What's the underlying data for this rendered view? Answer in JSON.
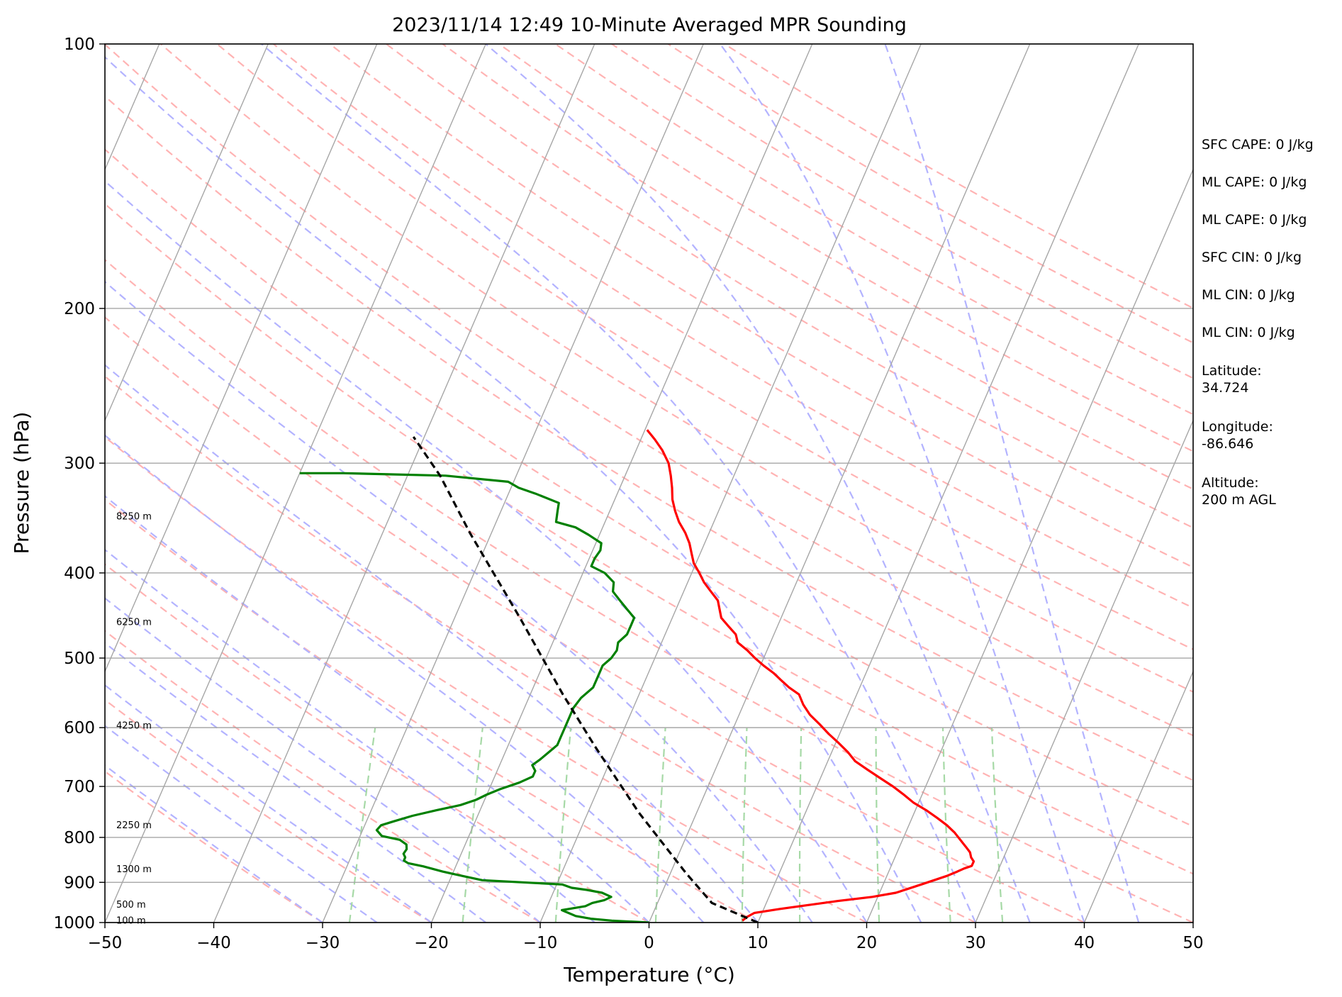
{
  "chart_data": {
    "type": "line",
    "chart_kind": "skew-T log-P sounding",
    "title": "2023/11/14 12:49 10-Minute Averaged MPR Sounding",
    "xlabel": "Temperature (°C)",
    "ylabel": "Pressure (hPa)",
    "xlim": [
      -50,
      50
    ],
    "ylim": [
      1000,
      100
    ],
    "y_scale": "log",
    "x_ticks": [
      -50,
      -40,
      -30,
      -20,
      -10,
      0,
      10,
      20,
      30,
      40,
      50
    ],
    "y_ticks": [
      100,
      200,
      300,
      400,
      500,
      600,
      700,
      800,
      900,
      1000
    ],
    "colors": {
      "temperature": "#ff0000",
      "dewpoint": "#008000",
      "parcel": "#000000",
      "isotherm": "#a6a6a6",
      "dry_adiabat": "#ffb3b3",
      "moist_adiabat": "#b3b3ff",
      "mixing_ratio": "#a6d9a6"
    },
    "height_labels": [
      {
        "label": "8250 m",
        "pressure": 345
      },
      {
        "label": "6250 m",
        "pressure": 455
      },
      {
        "label": "4250 m",
        "pressure": 597
      },
      {
        "label": "2250 m",
        "pressure": 775
      },
      {
        "label": "1300 m",
        "pressure": 870
      },
      {
        "label": "500 m",
        "pressure": 955
      },
      {
        "label": "100 m",
        "pressure": 995
      }
    ],
    "annotations": [
      "SFC CAPE: 0 J/kg",
      "ML CAPE: 0 J/kg",
      "ML CAPE: 0 J/kg",
      "SFC CIN: 0 J/kg",
      "ML CIN: 0 J/kg",
      "ML CIN: 0 J/kg",
      "Latitude:\n34.724",
      "Longitude:\n-86.646",
      "Altitude:\n200 m AGL"
    ],
    "series": [
      {
        "points": [
          [
            8.5,
            995
          ],
          [
            8.8,
            985
          ],
          [
            9.3,
            975
          ],
          [
            11.5,
            965
          ],
          [
            14,
            955
          ],
          [
            16.5,
            945
          ],
          [
            19.5,
            935
          ],
          [
            21.5,
            925
          ],
          [
            22.5,
            915
          ],
          [
            23.5,
            905
          ],
          [
            24.5,
            895
          ],
          [
            25.5,
            885
          ],
          [
            26.3,
            875
          ],
          [
            26.8,
            868
          ],
          [
            27.4,
            862
          ],
          [
            27.4,
            852
          ],
          [
            27,
            843
          ],
          [
            26.7,
            832
          ],
          [
            26.1,
            820
          ],
          [
            25.3,
            805
          ],
          [
            24.5,
            790
          ],
          [
            23.5,
            775
          ],
          [
            22.3,
            760
          ],
          [
            21,
            745
          ],
          [
            19.5,
            730
          ],
          [
            18.3,
            715
          ],
          [
            17,
            700
          ],
          [
            15.5,
            685
          ],
          [
            14,
            670
          ],
          [
            12.5,
            655
          ],
          [
            11.5,
            640
          ],
          [
            10.3,
            625
          ],
          [
            9,
            610
          ],
          [
            7.8,
            595
          ],
          [
            6.5,
            580
          ],
          [
            5.5,
            565
          ],
          [
            4.7,
            550
          ],
          [
            3.5,
            540
          ],
          [
            2.5,
            530
          ],
          [
            1.5,
            520
          ],
          [
            0.3,
            510
          ],
          [
            -0.8,
            500
          ],
          [
            -1.8,
            490
          ],
          [
            -3,
            480
          ],
          [
            -3.5,
            470
          ],
          [
            -4.5,
            460
          ],
          [
            -5.5,
            450
          ],
          [
            -6,
            440
          ],
          [
            -6.5,
            430
          ],
          [
            -7.5,
            420
          ],
          [
            -8.5,
            410
          ],
          [
            -9.3,
            400
          ],
          [
            -10.2,
            390
          ],
          [
            -10.8,
            380
          ],
          [
            -11.4,
            370
          ],
          [
            -12.2,
            360
          ],
          [
            -13.2,
            350
          ],
          [
            -14,
            340
          ],
          [
            -14.7,
            330
          ],
          [
            -15.2,
            320
          ],
          [
            -15.8,
            310
          ],
          [
            -16.5,
            300
          ],
          [
            -17.6,
            290
          ],
          [
            -18.7,
            282
          ],
          [
            -19.8,
            275
          ]
        ]
      },
      {
        "points": [
          [
            0,
            1000
          ],
          [
            -3.5,
            995
          ],
          [
            -5.5,
            990
          ],
          [
            -7,
            983
          ],
          [
            -7.8,
            975
          ],
          [
            -8.5,
            968
          ],
          [
            -7.5,
            963
          ],
          [
            -6.5,
            958
          ],
          [
            -6,
            950
          ],
          [
            -5,
            943
          ],
          [
            -4.5,
            935
          ],
          [
            -5.5,
            925
          ],
          [
            -7,
            918
          ],
          [
            -8.5,
            913
          ],
          [
            -9.5,
            905
          ],
          [
            -17,
            895
          ],
          [
            -19,
            885
          ],
          [
            -21,
            875
          ],
          [
            -23,
            863
          ],
          [
            -24.5,
            856
          ],
          [
            -25,
            850
          ],
          [
            -25,
            843
          ],
          [
            -25.3,
            835
          ],
          [
            -25.2,
            825
          ],
          [
            -25.4,
            815
          ],
          [
            -26.2,
            805
          ],
          [
            -28,
            797
          ],
          [
            -28.7,
            785
          ],
          [
            -28.5,
            775
          ],
          [
            -27.5,
            767
          ],
          [
            -26,
            756
          ],
          [
            -24,
            745
          ],
          [
            -22,
            735
          ],
          [
            -20.8,
            725
          ],
          [
            -20,
            715
          ],
          [
            -19,
            705
          ],
          [
            -17.5,
            693
          ],
          [
            -16.5,
            682
          ],
          [
            -16.5,
            672
          ],
          [
            -17,
            662
          ],
          [
            -16.5,
            652
          ],
          [
            -16,
            640
          ],
          [
            -15.5,
            628
          ],
          [
            -15.5,
            615
          ],
          [
            -15.5,
            600
          ],
          [
            -15.5,
            585
          ],
          [
            -15.5,
            570
          ],
          [
            -15.2,
            555
          ],
          [
            -14.5,
            540
          ],
          [
            -14.5,
            525
          ],
          [
            -14.5,
            510
          ],
          [
            -14,
            500
          ],
          [
            -13.8,
            490
          ],
          [
            -14,
            480
          ],
          [
            -13.5,
            470
          ],
          [
            -13.5,
            460
          ],
          [
            -13.5,
            450
          ],
          [
            -14.5,
            440
          ],
          [
            -15.5,
            430
          ],
          [
            -16.5,
            420
          ],
          [
            -16.8,
            410
          ],
          [
            -18,
            400
          ],
          [
            -19.5,
            393
          ],
          [
            -19.5,
            385
          ],
          [
            -19.3,
            377
          ],
          [
            -19.5,
            370
          ],
          [
            -21,
            362
          ],
          [
            -22.5,
            355
          ],
          [
            -24.5,
            350
          ],
          [
            -24.8,
            340
          ],
          [
            -25,
            333
          ],
          [
            -27.5,
            325
          ],
          [
            -29.3,
            320
          ],
          [
            -30.5,
            315
          ],
          [
            -36.5,
            310
          ],
          [
            -46,
            308
          ],
          [
            -50,
            308
          ]
        ]
      },
      {
        "points": [
          [
            10,
            1000
          ],
          [
            5,
            950
          ],
          [
            1.5,
            880
          ],
          [
            -5.3,
            750
          ],
          [
            -12,
            630
          ],
          [
            -17,
            550
          ],
          [
            -24,
            450
          ],
          [
            -32,
            360
          ],
          [
            -37,
            310
          ],
          [
            -41,
            280
          ]
        ]
      }
    ]
  }
}
